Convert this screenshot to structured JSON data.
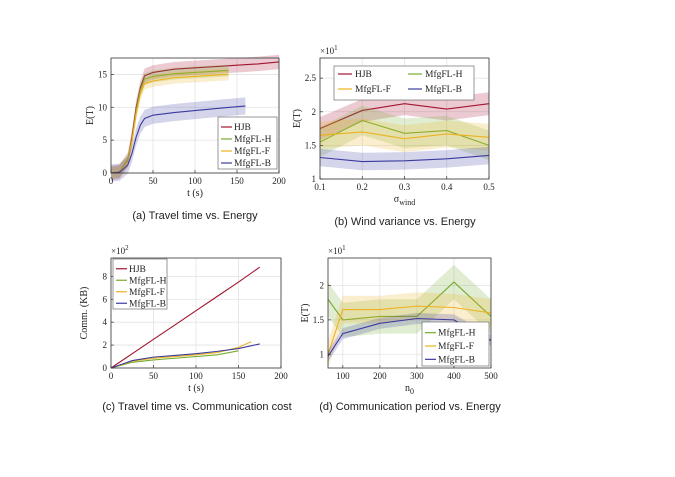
{
  "colors": {
    "HJB": "#a2142f",
    "MfgFL-H": "#77ac30",
    "MfgFL-F": "#edb120",
    "MfgFL-B": "#3b3b9e"
  },
  "chart_data": [
    {
      "type": "line",
      "caption": "(a) Travel time vs. Energy",
      "xlabel": "t (s)",
      "ylabel": "E(T)",
      "xlim": [
        0,
        200
      ],
      "ylim": [
        0,
        17.5
      ],
      "xticks": [
        "0",
        "50",
        "100",
        "150",
        "200"
      ],
      "yticks": [
        "0",
        "5",
        "10",
        "15"
      ],
      "grid": true,
      "legend": "bottom-right",
      "series": [
        {
          "name": "HJB",
          "x": [
            0,
            10,
            20,
            25,
            30,
            35,
            40,
            50,
            75,
            100,
            125,
            150,
            175,
            200
          ],
          "y": [
            0,
            0.2,
            2,
            5.5,
            10,
            13,
            14.8,
            15.3,
            15.8,
            16,
            16.2,
            16.4,
            16.6,
            16.9
          ],
          "band": 1.1
        },
        {
          "name": "MfgFL-H",
          "x": [
            0,
            10,
            20,
            25,
            30,
            35,
            40,
            50,
            75,
            100,
            125,
            140
          ],
          "y": [
            0,
            0.2,
            2,
            5,
            9.5,
            12.6,
            14.3,
            14.7,
            15.1,
            15.3,
            15.5,
            15.6
          ],
          "band": 0.9
        },
        {
          "name": "MfgFL-F",
          "x": [
            0,
            10,
            20,
            25,
            30,
            35,
            40,
            50,
            75,
            100,
            125,
            140
          ],
          "y": [
            0,
            0.2,
            1.8,
            4.8,
            9,
            12,
            13.6,
            14,
            14.5,
            14.7,
            14.9,
            15
          ],
          "band": 0.9
        },
        {
          "name": "MfgFL-B",
          "x": [
            0,
            10,
            20,
            25,
            30,
            35,
            40,
            50,
            75,
            100,
            125,
            160
          ],
          "y": [
            0,
            0.1,
            1.2,
            3,
            5.5,
            7.3,
            8.3,
            8.8,
            9.2,
            9.5,
            9.8,
            10.2
          ],
          "band": 1.3
        }
      ]
    },
    {
      "type": "line",
      "caption": "(b) Wind  variance vs. Energy",
      "xlabel": "σ",
      "xlabel_sub": "wind",
      "ylabel": "E(T)",
      "yexp": "×10",
      "yexp_pow": "1",
      "xlim": [
        0.1,
        0.5
      ],
      "ylim": [
        1,
        2.8
      ],
      "xticks": [
        "0.1",
        "0.2",
        "0.3",
        "0.4",
        "0.5"
      ],
      "yticks": [
        "1",
        "1.5",
        "2",
        "2.5"
      ],
      "grid": true,
      "legend": "top",
      "series": [
        {
          "name": "HJB",
          "x": [
            0.1,
            0.2,
            0.3,
            0.4,
            0.5
          ],
          "y": [
            1.75,
            2.02,
            2.12,
            2.04,
            2.12
          ],
          "band": 0.17
        },
        {
          "name": "MfgFL-H",
          "x": [
            0.1,
            0.2,
            0.3,
            0.4,
            0.5
          ],
          "y": [
            1.55,
            1.87,
            1.68,
            1.72,
            1.5
          ],
          "band": 0.22
        },
        {
          "name": "MfgFL-F",
          "x": [
            0.1,
            0.2,
            0.3,
            0.4,
            0.5
          ],
          "y": [
            1.65,
            1.7,
            1.6,
            1.67,
            1.62
          ],
          "band": 0.2
        },
        {
          "name": "MfgFL-B",
          "x": [
            0.1,
            0.2,
            0.3,
            0.4,
            0.5
          ],
          "y": [
            1.32,
            1.26,
            1.27,
            1.3,
            1.35
          ],
          "band": 0.13
        }
      ]
    },
    {
      "type": "line",
      "caption": "(c) Travel time vs. Communication cost",
      "xlabel": "t (s)",
      "ylabel": "Comm. (KB)",
      "yexp": "×10",
      "yexp_pow": "2",
      "xlim": [
        0,
        200
      ],
      "ylim": [
        0,
        9.6
      ],
      "xticks": [
        "0",
        "50",
        "100",
        "150",
        "200"
      ],
      "yticks": [
        "0",
        "2",
        "4",
        "6",
        "8"
      ],
      "grid": true,
      "legend": "top-left",
      "series": [
        {
          "name": "HJB",
          "x": [
            0,
            25,
            50,
            75,
            100,
            125,
            150,
            175
          ],
          "y": [
            0,
            1.25,
            2.5,
            3.75,
            5,
            6.25,
            7.5,
            8.8
          ],
          "band": 0
        },
        {
          "name": "MfgFL-H",
          "x": [
            0,
            25,
            50,
            75,
            100,
            125,
            150
          ],
          "y": [
            0,
            0.5,
            0.7,
            0.85,
            1,
            1.15,
            1.5
          ],
          "band": 0
        },
        {
          "name": "MfgFL-F",
          "x": [
            0,
            25,
            50,
            75,
            100,
            125,
            150,
            165
          ],
          "y": [
            0,
            0.6,
            0.85,
            1,
            1.15,
            1.35,
            1.8,
            2.3
          ],
          "band": 0
        },
        {
          "name": "MfgFL-B",
          "x": [
            0,
            25,
            50,
            75,
            100,
            125,
            150,
            175
          ],
          "y": [
            0,
            0.65,
            0.95,
            1.1,
            1.25,
            1.45,
            1.7,
            2.1
          ],
          "band": 0
        }
      ]
    },
    {
      "type": "line",
      "caption": "(d) Communication period vs. Energy",
      "xlabel": "n",
      "xlabel_sub": "0",
      "ylabel": "E(T)",
      "yexp": "×10",
      "yexp_pow": "1",
      "xlim": [
        60,
        500
      ],
      "ylim": [
        0.8,
        2.4
      ],
      "xticks": [
        "100",
        "200",
        "300",
        "400",
        "500"
      ],
      "yticks": [
        "1",
        "1.5",
        "2"
      ],
      "grid": true,
      "legend": "bottom-right",
      "series": [
        {
          "name": "MfgFL-H",
          "x": [
            60,
            100,
            200,
            300,
            400,
            500
          ],
          "y": [
            1.8,
            1.5,
            1.55,
            1.55,
            2.05,
            1.55
          ],
          "band": 0.25
        },
        {
          "name": "MfgFL-F",
          "x": [
            60,
            100,
            200,
            300,
            400,
            500
          ],
          "y": [
            1.0,
            1.65,
            1.65,
            1.7,
            1.68,
            1.6
          ],
          "band": 0.2
        },
        {
          "name": "MfgFL-B",
          "x": [
            60,
            100,
            200,
            300,
            400,
            500
          ],
          "y": [
            0.97,
            1.3,
            1.45,
            1.52,
            1.5,
            1.2
          ],
          "band": 0.08
        }
      ]
    }
  ]
}
